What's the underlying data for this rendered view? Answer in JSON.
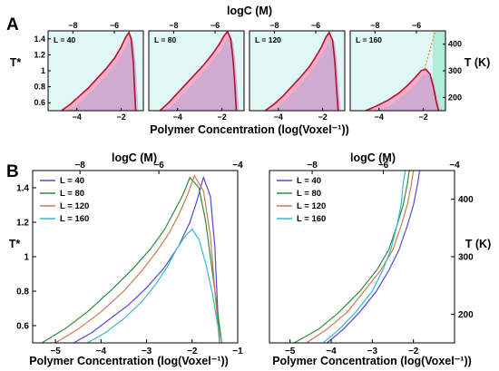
{
  "figure": {
    "panel_a_letter": "A",
    "panel_b_letter": "B"
  },
  "colors": {
    "bg_outside": "#dff7f7",
    "coex_fill": "#f3a9c6",
    "curve": "#b3122a",
    "border": "#000000",
    "sim_fill": "#c6a9d4",
    "teal_accent": "#9ee6c9",
    "orange_dotted": "#f08a1c",
    "series": [
      "#4b4bdc",
      "#2e8b3a",
      "#cc7a52",
      "#35b8d6"
    ]
  },
  "chart_data": [
    {
      "id": "panel-A",
      "type": "area",
      "subplots": [
        {
          "label": "L = 40",
          "L": 40,
          "curve": {
            "x": [
              -4.7,
              -4.3,
              -3.9,
              -3.5,
              -3.1,
              -2.7,
              -2.3,
              -2.0,
              -1.8,
              -1.65,
              -1.55,
              -1.45,
              -1.4,
              -1.35
            ],
            "y": [
              0.5,
              0.58,
              0.68,
              0.78,
              0.9,
              1.02,
              1.16,
              1.3,
              1.42,
              1.48,
              1.4,
              1.1,
              0.8,
              0.5
            ]
          }
        },
        {
          "label": "L = 80",
          "L": 80,
          "curve": {
            "x": [
              -4.8,
              -4.4,
              -4.0,
              -3.6,
              -3.2,
              -2.8,
              -2.4,
              -2.1,
              -1.9,
              -1.75,
              -1.6,
              -1.5,
              -1.42,
              -1.35
            ],
            "y": [
              0.5,
              0.6,
              0.72,
              0.84,
              0.96,
              1.08,
              1.22,
              1.34,
              1.44,
              1.49,
              1.4,
              1.15,
              0.85,
              0.5
            ]
          }
        },
        {
          "label": "L = 120",
          "L": 120,
          "curve": {
            "x": [
              -4.6,
              -4.2,
              -3.8,
              -3.4,
              -3.0,
              -2.6,
              -2.3,
              -2.05,
              -1.85,
              -1.7,
              -1.55,
              -1.45,
              -1.38,
              -1.3
            ],
            "y": [
              0.5,
              0.58,
              0.68,
              0.8,
              0.92,
              1.05,
              1.18,
              1.3,
              1.42,
              1.48,
              1.38,
              1.12,
              0.82,
              0.5
            ]
          }
        },
        {
          "label": "L = 160",
          "L": 160,
          "curve": {
            "x": [
              -4.6,
              -4.1,
              -3.6,
              -3.1,
              -2.7,
              -2.35,
              -2.1,
              -1.9,
              -1.7,
              -1.55,
              -1.42,
              -1.32
            ],
            "y": [
              0.5,
              0.56,
              0.63,
              0.72,
              0.82,
              0.92,
              1.0,
              1.02,
              0.96,
              0.8,
              0.62,
              0.5
            ]
          }
        }
      ],
      "x_range": [
        -5.3,
        -1.0
      ],
      "y_range": [
        0.5,
        1.5
      ],
      "x_ticks": [
        -4,
        -2
      ],
      "y_ticks": [
        0.6,
        0.8,
        1.0,
        1.2,
        1.4
      ],
      "top_ticks": [
        -8,
        -6
      ],
      "right_ticks": [
        200,
        300,
        400
      ],
      "xlabel": "Polymer Concentration (log(Voxel⁻¹))",
      "top_label": "logC (M)",
      "ylabel": "T*",
      "right_label": "T (K)"
    },
    {
      "id": "panel-B-left",
      "type": "line",
      "series": [
        {
          "name": "L = 40",
          "x": [
            -4.6,
            -4.2,
            -3.8,
            -3.4,
            -3.0,
            -2.6,
            -2.3,
            -2.05,
            -1.9,
            -1.75,
            -1.6,
            -1.5,
            -1.45,
            -1.4
          ],
          "y": [
            0.5,
            0.56,
            0.64,
            0.72,
            0.82,
            0.94,
            1.06,
            1.2,
            1.32,
            1.46,
            1.35,
            1.05,
            0.75,
            0.5
          ]
        },
        {
          "name": "L = 80",
          "x": [
            -5.3,
            -4.8,
            -4.3,
            -3.8,
            -3.3,
            -2.9,
            -2.6,
            -2.4,
            -2.2,
            -2.05,
            -1.85,
            -1.7,
            -1.55,
            -1.45,
            -1.35
          ],
          "y": [
            0.5,
            0.58,
            0.68,
            0.8,
            0.93,
            1.05,
            1.16,
            1.26,
            1.36,
            1.46,
            1.4,
            1.2,
            0.9,
            0.7,
            0.5
          ]
        },
        {
          "name": "L = 120",
          "x": [
            -5.0,
            -4.5,
            -4.0,
            -3.5,
            -3.1,
            -2.75,
            -2.5,
            -2.3,
            -2.1,
            -1.95,
            -1.75,
            -1.6,
            -1.5,
            -1.4
          ],
          "y": [
            0.5,
            0.58,
            0.68,
            0.8,
            0.92,
            1.04,
            1.14,
            1.24,
            1.36,
            1.47,
            1.38,
            1.12,
            0.8,
            0.5
          ]
        },
        {
          "name": "L = 160",
          "x": [
            -4.3,
            -3.9,
            -3.5,
            -3.1,
            -2.8,
            -2.55,
            -2.35,
            -2.15,
            -2.0,
            -1.85,
            -1.7,
            -1.55,
            -1.45,
            -1.35
          ],
          "y": [
            0.5,
            0.56,
            0.64,
            0.74,
            0.84,
            0.94,
            1.04,
            1.12,
            1.16,
            1.1,
            0.96,
            0.78,
            0.62,
            0.5
          ]
        }
      ],
      "xlim": [
        -5.5,
        -1.0
      ],
      "ylim": [
        0.5,
        1.5
      ],
      "x_ticks": [
        -5,
        -4,
        -3,
        -2,
        -1
      ],
      "y_ticks": [
        0.6,
        0.8,
        1.0,
        1.2,
        1.4
      ],
      "top_ticks": [
        -8,
        -6,
        -4
      ],
      "xlabel": "Polymer Concentration (log(Voxel⁻¹))",
      "top_label": "logC (M)",
      "ylabel": "T*",
      "legend": "top-left"
    },
    {
      "id": "panel-B-right",
      "type": "line",
      "series": [
        {
          "name": "L = 40",
          "x": [
            -4.1,
            -3.7,
            -3.3,
            -2.9,
            -2.6,
            -2.35,
            -2.15,
            -2.0,
            -1.9,
            -1.85
          ],
          "y": [
            0.5,
            0.58,
            0.68,
            0.8,
            0.92,
            1.04,
            1.18,
            1.3,
            1.42,
            1.5
          ]
        },
        {
          "name": "L = 80",
          "x": [
            -4.9,
            -4.3,
            -3.8,
            -3.3,
            -2.9,
            -2.6,
            -2.4,
            -2.25,
            -2.15,
            -2.1
          ],
          "y": [
            0.5,
            0.58,
            0.68,
            0.8,
            0.92,
            1.04,
            1.18,
            1.3,
            1.42,
            1.5
          ]
        },
        {
          "name": "L = 120",
          "x": [
            -4.6,
            -4.1,
            -3.6,
            -3.2,
            -2.8,
            -2.5,
            -2.3,
            -2.15,
            -2.05,
            -2.0
          ],
          "y": [
            0.5,
            0.58,
            0.68,
            0.8,
            0.92,
            1.04,
            1.18,
            1.3,
            1.42,
            1.5
          ]
        },
        {
          "name": "L = 160",
          "x": [
            -4.2,
            -3.8,
            -3.4,
            -3.0,
            -2.75,
            -2.55,
            -2.4,
            -2.3,
            -2.25,
            -2.2
          ],
          "y": [
            0.5,
            0.58,
            0.68,
            0.8,
            0.92,
            1.04,
            1.18,
            1.3,
            1.42,
            1.5
          ]
        }
      ],
      "xlim": [
        -5.5,
        -1.0
      ],
      "ylim": [
        0.5,
        1.5
      ],
      "x_ticks": [
        -5,
        -4,
        -3,
        -2
      ],
      "top_ticks": [
        -8,
        -6,
        -4
      ],
      "right_ticks": [
        200,
        300,
        400
      ],
      "xlabel": "Polymer Concentration (log(Voxel⁻¹))",
      "top_label": "logC (M)",
      "right_label": "T (K)",
      "legend": "top-left"
    }
  ]
}
